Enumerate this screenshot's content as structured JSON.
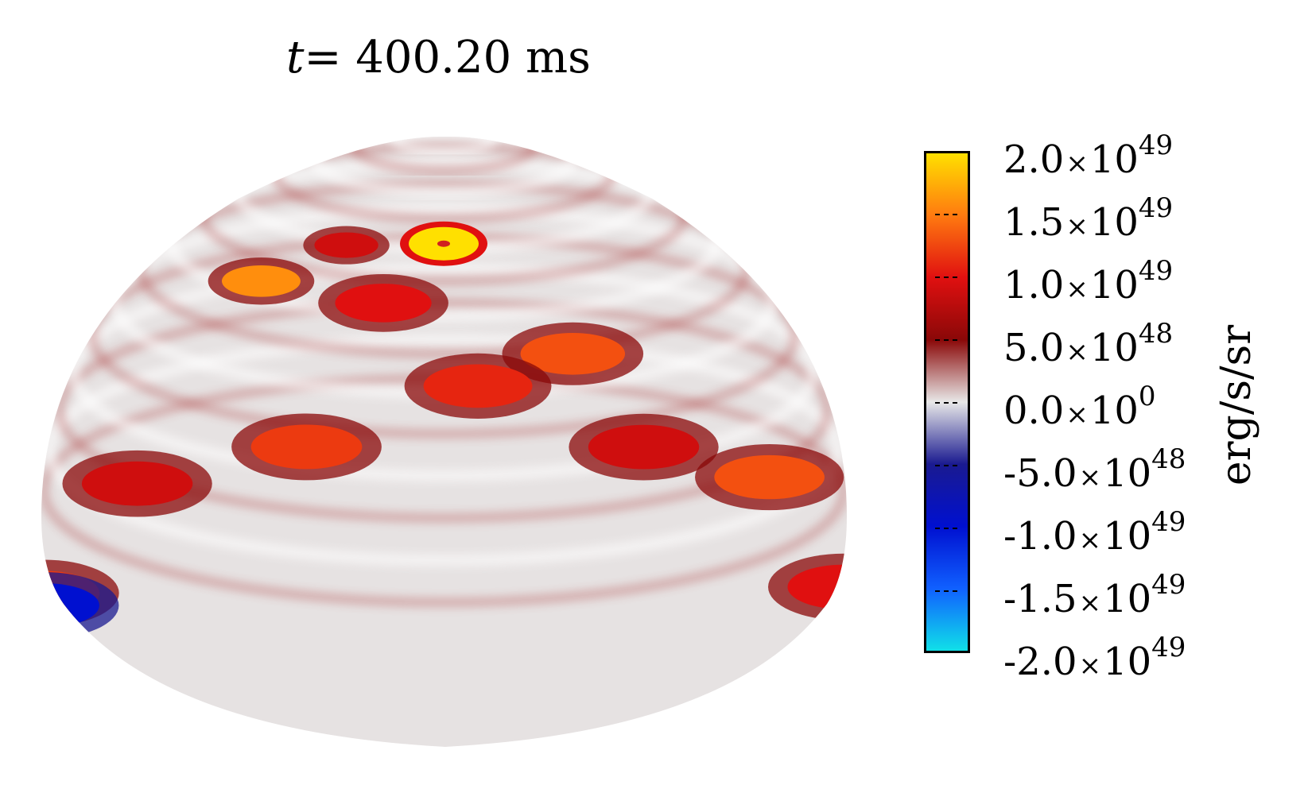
{
  "title": {
    "variable": "t",
    "equals": "=",
    "value": "400.20 ms"
  },
  "chart_data": {
    "type": "heatmap",
    "projection": "hemisphere",
    "colorbar": {
      "label": "erg/s/sr",
      "range": [
        -2e+49,
        2e+49
      ],
      "ticks": [
        {
          "mantissa": "2.0",
          "exponent": "49",
          "value": 2e+49
        },
        {
          "mantissa": "1.5",
          "exponent": "49",
          "value": 1.5e+49
        },
        {
          "mantissa": "1.0",
          "exponent": "49",
          "value": 1e+49
        },
        {
          "mantissa": "5.0",
          "exponent": "48",
          "value": 5e+48
        },
        {
          "mantissa": "0.0",
          "exponent": "0",
          "value": 0
        },
        {
          "mantissa": "-5.0",
          "exponent": "48",
          "value": -5e+48
        },
        {
          "mantissa": "-1.0",
          "exponent": "49",
          "value": -1e+49
        },
        {
          "mantissa": "-1.5",
          "exponent": "49",
          "value": -1.5e+49
        },
        {
          "mantissa": "-2.0",
          "exponent": "49",
          "value": -2e+49
        }
      ],
      "times_symbol": "×",
      "base": "10",
      "stops": [
        {
          "value": 2e+49,
          "color": "#ffe000"
        },
        {
          "value": 1.5e+49,
          "color": "#ff7a10"
        },
        {
          "value": 1e+49,
          "color": "#e01010"
        },
        {
          "value": 5e+48,
          "color": "#8a0808"
        },
        {
          "value": 0,
          "color": "#e8e8e8"
        },
        {
          "value": -5e+48,
          "color": "#1a1a90"
        },
        {
          "value": -1e+49,
          "color": "#0010d0"
        },
        {
          "value": -1.5e+49,
          "color": "#1060ff"
        },
        {
          "value": -2e+49,
          "color": "#10e0e8"
        }
      ]
    },
    "background_color": "#e6e2e2",
    "features": [
      {
        "kind": "ring",
        "lat": 80,
        "lon": 0,
        "value": 2e+49
      },
      {
        "kind": "blob",
        "lat": 45,
        "lon": -40,
        "value": 1.6e+49
      },
      {
        "kind": "blob",
        "lat": 20,
        "lon": 20,
        "value": 1.3e+49
      },
      {
        "kind": "blob",
        "lat": 12,
        "lon": 5,
        "value": 1.1e+49
      },
      {
        "kind": "blob",
        "lat": 8,
        "lon": 55,
        "value": 1.3e+49
      },
      {
        "kind": "blob",
        "lat": 5,
        "lon": -50,
        "value": 9e+48
      },
      {
        "kind": "blob",
        "lat": 30,
        "lon": -10,
        "value": 1e+49
      },
      {
        "kind": "blob",
        "lat": 55,
        "lon": -25,
        "value": 9e+48
      },
      {
        "kind": "blob",
        "lat": 2,
        "lon": -85,
        "value": 1.2e+49
      },
      {
        "kind": "blob",
        "lat": 3,
        "lon": 85,
        "value": 1e+49
      },
      {
        "kind": "blob",
        "lat": 3,
        "lon": -20,
        "value": 1.2e+49
      },
      {
        "kind": "blob",
        "lat": 5,
        "lon": 30,
        "value": 9e+48
      },
      {
        "kind": "blob",
        "lat": 0,
        "lon": -85,
        "value": -1e+49
      }
    ]
  }
}
